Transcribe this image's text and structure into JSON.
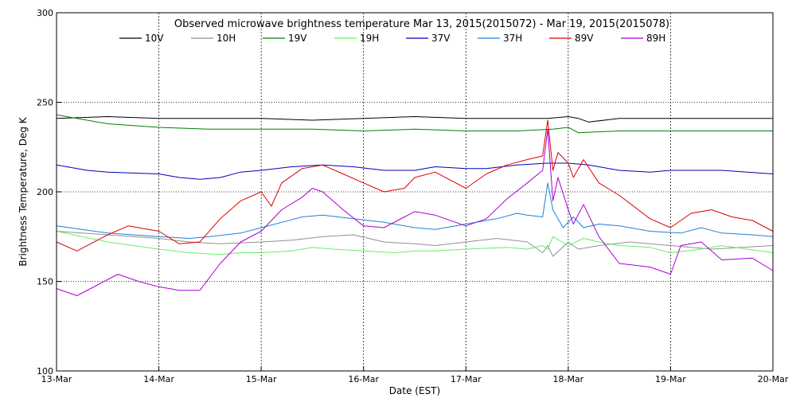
{
  "chart_data": {
    "type": "line",
    "title": "Observed microwave brightness temperature Mar 13, 2015(2015072) - Mar 19, 2015(2015078)",
    "xlabel": "Date (EST)",
    "ylabel": "Brightness Temperature, Deg K",
    "xlim": [
      0,
      7
    ],
    "ylim": [
      100,
      300
    ],
    "x_ticks": [
      0,
      1,
      2,
      3,
      4,
      5,
      6,
      7
    ],
    "x_tick_labels": [
      "13-Mar",
      "14-Mar",
      "15-Mar",
      "16-Mar",
      "17-Mar",
      "18-Mar",
      "19-Mar",
      "20-Mar"
    ],
    "y_ticks": [
      100,
      150,
      200,
      250,
      300
    ],
    "y_tick_labels": [
      "100",
      "150",
      "200",
      "250",
      "300"
    ],
    "grid": "dotted",
    "legend_position": "top",
    "series": [
      {
        "name": "10V",
        "color": "#000000",
        "x": [
          0,
          0.5,
          1,
          1.5,
          2,
          2.5,
          3,
          3.5,
          4,
          4.4,
          4.8,
          5.0,
          5.1,
          5.2,
          5.5,
          6,
          6.5,
          7
        ],
        "y": [
          241,
          242,
          241,
          241,
          241,
          240,
          241,
          242,
          241,
          241,
          241,
          242,
          241,
          239,
          241,
          241,
          241,
          241
        ]
      },
      {
        "name": "10H",
        "color": "#909090",
        "x": [
          0,
          0.5,
          1,
          1.3,
          1.6,
          2,
          2.3,
          2.6,
          2.9,
          3.2,
          3.5,
          3.7,
          4,
          4.3,
          4.6,
          4.75,
          4.8,
          4.85,
          5,
          5.1,
          5.3,
          5.6,
          6,
          6.4,
          7
        ],
        "y": [
          178,
          176,
          174,
          172,
          171,
          172,
          173,
          175,
          176,
          172,
          171,
          170,
          172,
          174,
          172,
          166,
          170,
          164,
          172,
          168,
          170,
          172,
          170,
          168,
          170
        ]
      },
      {
        "name": "19V",
        "color": "#008000",
        "x": [
          0,
          0.5,
          1,
          1.5,
          2,
          2.5,
          3,
          3.5,
          4,
          4.5,
          4.85,
          5,
          5.1,
          5.5,
          6,
          6.5,
          7
        ],
        "y": [
          243,
          238,
          236,
          235,
          235,
          235,
          234,
          235,
          234,
          234,
          235,
          236,
          233,
          234,
          234,
          234,
          234
        ]
      },
      {
        "name": "19H",
        "color": "#66ee66",
        "x": [
          0,
          0.5,
          1,
          1.3,
          1.6,
          1.8,
          2,
          2.3,
          2.5,
          2.7,
          3,
          3.3,
          3.5,
          3.7,
          4,
          4.4,
          4.6,
          4.75,
          4.8,
          4.85,
          5,
          5.15,
          5.3,
          5.5,
          5.8,
          6,
          6.3,
          6.5,
          7
        ],
        "y": [
          178,
          172,
          168,
          166,
          165,
          166,
          166,
          167,
          169,
          168,
          167,
          166,
          167,
          167,
          168,
          169,
          168,
          170,
          168,
          175,
          170,
          174,
          172,
          170,
          169,
          166,
          168,
          170,
          166
        ]
      },
      {
        "name": "37V",
        "color": "#0000bb",
        "x": [
          0,
          0.3,
          0.5,
          1,
          1.2,
          1.4,
          1.6,
          1.8,
          2,
          2.3,
          2.6,
          2.9,
          3.2,
          3.5,
          3.7,
          4,
          4.2,
          4.5,
          4.8,
          5.0,
          5.2,
          5.5,
          5.8,
          6,
          6.5,
          7
        ],
        "y": [
          215,
          212,
          211,
          210,
          208,
          207,
          208,
          211,
          212,
          214,
          215,
          214,
          212,
          212,
          214,
          213,
          213,
          215,
          216,
          216,
          215,
          212,
          211,
          212,
          212,
          210
        ]
      },
      {
        "name": "37H",
        "color": "#1e7fd6",
        "x": [
          0,
          0.5,
          1,
          1.3,
          1.5,
          1.8,
          2.0,
          2.2,
          2.4,
          2.6,
          2.9,
          3.2,
          3.5,
          3.7,
          4,
          4.3,
          4.5,
          4.6,
          4.75,
          4.8,
          4.85,
          4.95,
          5.05,
          5.15,
          5.3,
          5.5,
          5.8,
          6.1,
          6.3,
          6.5,
          6.8,
          7
        ],
        "y": [
          181,
          177,
          175,
          174,
          175,
          177,
          180,
          183,
          186,
          187,
          185,
          183,
          180,
          179,
          182,
          185,
          188,
          187,
          186,
          205,
          190,
          180,
          186,
          180,
          182,
          181,
          178,
          177,
          180,
          177,
          176,
          175
        ]
      },
      {
        "name": "89V",
        "color": "#dd0000",
        "x": [
          0,
          0.2,
          0.5,
          0.7,
          1,
          1.2,
          1.4,
          1.6,
          1.8,
          2,
          2.1,
          2.2,
          2.4,
          2.6,
          2.8,
          3,
          3.2,
          3.4,
          3.5,
          3.7,
          4,
          4.2,
          4.4,
          4.6,
          4.75,
          4.8,
          4.85,
          4.9,
          5.0,
          5.05,
          5.15,
          5.3,
          5.5,
          5.8,
          6.0,
          6.2,
          6.4,
          6.6,
          6.8,
          7
        ],
        "y": [
          172,
          167,
          176,
          181,
          178,
          171,
          172,
          185,
          195,
          200,
          192,
          205,
          213,
          215,
          210,
          205,
          200,
          202,
          208,
          211,
          202,
          210,
          215,
          218,
          220,
          240,
          212,
          222,
          216,
          208,
          218,
          205,
          198,
          185,
          180,
          188,
          190,
          186,
          184,
          178
        ]
      },
      {
        "name": "89H",
        "color": "#aa00cc",
        "x": [
          0,
          0.2,
          0.4,
          0.6,
          0.8,
          1,
          1.2,
          1.4,
          1.6,
          1.8,
          2,
          2.1,
          2.2,
          2.4,
          2.5,
          2.6,
          2.8,
          3,
          3.2,
          3.4,
          3.5,
          3.7,
          4,
          4.2,
          4.4,
          4.6,
          4.75,
          4.8,
          4.85,
          4.9,
          5.0,
          5.05,
          5.15,
          5.3,
          5.5,
          5.8,
          6.0,
          6.1,
          6.3,
          6.5,
          6.8,
          7
        ],
        "y": [
          146,
          142,
          148,
          154,
          150,
          147,
          145,
          145,
          160,
          172,
          178,
          184,
          190,
          197,
          202,
          200,
          190,
          181,
          180,
          186,
          189,
          187,
          181,
          185,
          196,
          205,
          212,
          235,
          195,
          208,
          190,
          182,
          193,
          175,
          160,
          158,
          154,
          170,
          172,
          162,
          163,
          156
        ]
      }
    ]
  }
}
